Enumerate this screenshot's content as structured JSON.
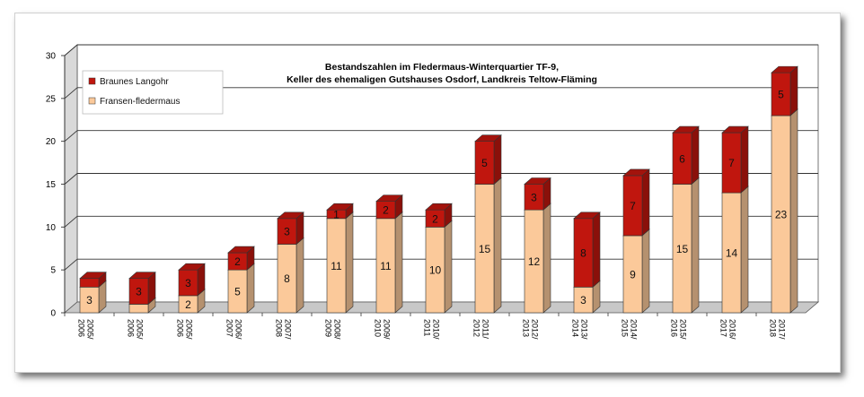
{
  "chart_data": {
    "type": "bar",
    "stacked": true,
    "title_line1": "Bestandszahlen im Fledermaus-Winterquartier TF-9,",
    "title_line2": "Keller des ehemaligen Gutshauses Osdorf, Landkreis Teltow-Fläming",
    "xlabel": "",
    "ylabel": "",
    "ylim": [
      0,
      30
    ],
    "yticks": [
      0,
      5,
      10,
      15,
      20,
      25,
      30
    ],
    "grid": true,
    "legend_position": "top-left",
    "categories": [
      [
        "2005/",
        "2006"
      ],
      [
        "2005/",
        "2006"
      ],
      [
        "2005/",
        "2006"
      ],
      [
        "2006/",
        "2007"
      ],
      [
        "2007/",
        "2008"
      ],
      [
        "2008/",
        "2009"
      ],
      [
        "2009/",
        "2010"
      ],
      [
        "2010/",
        "2011"
      ],
      [
        "2011/",
        "2012"
      ],
      [
        "2012/",
        "2013"
      ],
      [
        "2013/",
        "2014"
      ],
      [
        "2014/",
        "2015"
      ],
      [
        "2015/",
        "2016"
      ],
      [
        "2016/",
        "2017"
      ],
      [
        "2017/",
        "2018"
      ]
    ],
    "series": [
      {
        "name": "Fransen-fledermaus",
        "color": "#fbc99a",
        "values": [
          3,
          1,
          2,
          5,
          8,
          11,
          11,
          10,
          15,
          12,
          3,
          9,
          15,
          14,
          23
        ],
        "labels": [
          "3",
          "",
          "2",
          "5",
          "8",
          "11",
          "11",
          "10",
          "15",
          "12",
          "3",
          "9",
          "15",
          "14",
          "23"
        ]
      },
      {
        "name": "Braunes Langohr",
        "color": "#c0160e",
        "values": [
          1,
          3,
          3,
          2,
          3,
          1,
          2,
          2,
          5,
          3,
          8,
          7,
          6,
          7,
          5
        ],
        "labels": [
          "",
          "3",
          "3",
          "2",
          "3",
          "1",
          "2",
          "2",
          "5",
          "3",
          "8",
          "7",
          "6",
          "7",
          "5"
        ]
      }
    ]
  }
}
